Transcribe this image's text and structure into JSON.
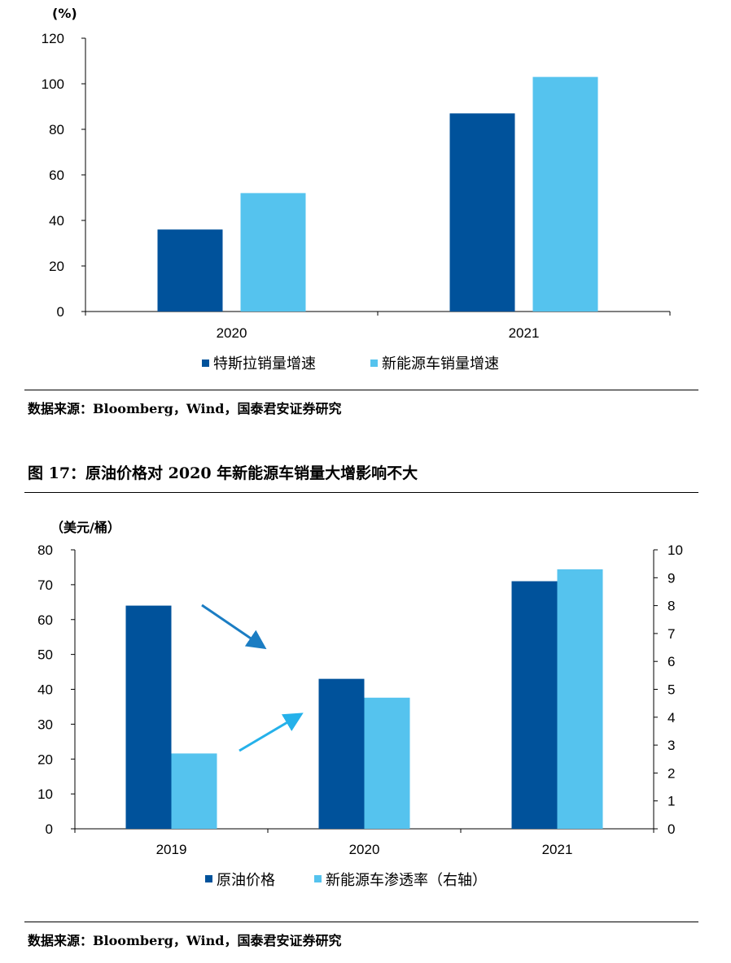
{
  "colors": {
    "dark": "#00529B",
    "light": "#55C3EE",
    "axis": "#000000",
    "arrow1": "#1B7DC3",
    "arrow2": "#25B1EA"
  },
  "chart1": {
    "unit": "(%)",
    "source": "数据来源：Bloomberg，Wind，国泰君安证券研究"
  },
  "chart2": {
    "title": "图 17：原油价格对 2020 年新能源车销量大增影响不大",
    "unit": "（美元/桶）",
    "source": "数据来源：Bloomberg，Wind，国泰君安证券研究"
  },
  "chart_data": [
    {
      "type": "bar",
      "categories": [
        "2020",
        "2021"
      ],
      "series": [
        {
          "name": "特斯拉销量增速",
          "values": [
            36,
            87
          ]
        },
        {
          "name": "新能源车销量增速",
          "values": [
            52,
            103
          ]
        }
      ],
      "ylim": [
        0,
        120
      ],
      "yticks": [
        0,
        20,
        40,
        60,
        80,
        100,
        120
      ],
      "ylabel": "(%)",
      "legend": "bottom"
    },
    {
      "type": "bar",
      "categories": [
        "2019",
        "2020",
        "2021"
      ],
      "series": [
        {
          "name": "原油价格",
          "axis": "left",
          "values": [
            64,
            43,
            71
          ]
        },
        {
          "name": "新能源车渗透率（右轴）",
          "axis": "right",
          "values": [
            2.7,
            4.7,
            9.3
          ]
        }
      ],
      "ylim_left": [
        0,
        80
      ],
      "yticks_left": [
        0,
        10,
        20,
        30,
        40,
        50,
        60,
        70,
        80
      ],
      "ylim_right": [
        0,
        10
      ],
      "yticks_right": [
        0,
        1,
        2,
        3,
        4,
        5,
        6,
        7,
        8,
        9,
        10
      ],
      "ylabel_left": "（美元/桶）",
      "legend": "bottom"
    }
  ]
}
